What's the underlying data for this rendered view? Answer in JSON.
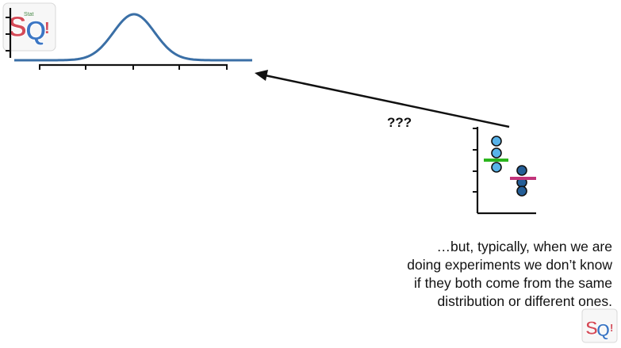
{
  "question_label": "???",
  "caption_lines": [
    "…but, typically, when we are",
    "doing experiments we don’t know",
    "if they both come from the same",
    "distribution or different ones."
  ],
  "colors": {
    "curve": "#3a6fa6",
    "light_dots": "#58b3ea",
    "dark_dots": "#245e97",
    "green_mean": "#2bb51d",
    "pink_mean": "#c2337a",
    "axis": "#111111"
  },
  "logo_text": "StatQuest StatQuest StatQuest"
}
